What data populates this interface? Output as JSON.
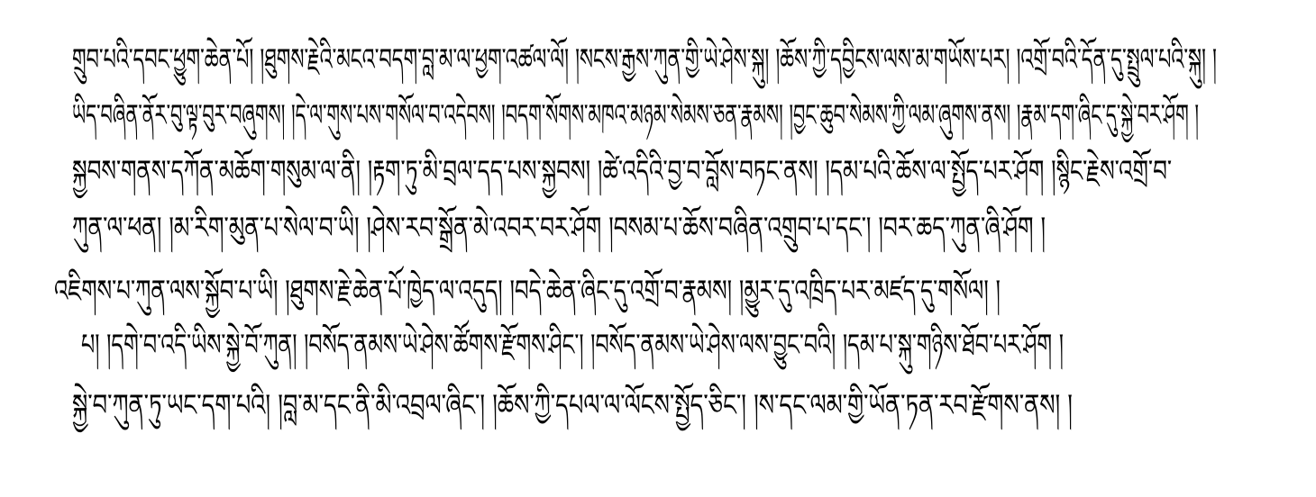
{
  "document": {
    "lines": [
      "གྲུབ་པའི་དབང་ཕྱུག་ཆེན་པོ། །ཐུགས་རྗེའི་མངའ་བདག་བླ་མ་ལ་ཕྱག་འཚལ་ལོ། །སངས་རྒྱས་ཀུན་གྱི་ཡེ་ཤེས་སྐུ། །ཆོས་ཀྱི་དབྱིངས་ལས་མ་གཡོས་པར། །འགྲོ་བའི་དོན་དུ་སྤྲུལ་པའི་སྐུ། །",
      "ཡིད་བཞིན་ནོར་བུ་ལྟ་བུར་བཞུགས། །དེ་ལ་གུས་པས་གསོལ་བ་འདེབས། །བདག་སོགས་མཁའ་མཉམ་སེམས་ཅན་རྣམས། །བྱང་ཆུབ་སེམས་ཀྱི་ལམ་ཞུགས་ནས། །རྣམ་དག་ཞིང་དུ་སྐྱེ་བར་ཤོག །",
      "སྐྱབས་གནས་དཀོན་མཆོག་གསུམ་ལ་ནི། །རྟག་ཏུ་མི་བྲལ་དད་པས་སྐྱབས། །ཚེ་འདིའི་བྱ་བ་བློས་བཏང་ནས། །དམ་པའི་ཆོས་ལ་སྤྱོད་པར་ཤོག །སྙིང་རྗེས་འགྲོ་བ་",
      "ཀུན་ལ་ཕན། །མ་རིག་མུན་པ་སེལ་བ་ཡི། །ཤེས་རབ་སྒྲོན་མེ་འབར་བར་ཤོག །བསམ་པ་ཆོས་བཞིན་འགྲུབ་པ་དང་། །བར་ཆད་ཀུན་ཞི་ཤོག །",
      "འཇིགས་པ་ཀུན་ལས་སྐྱོབ་པ་ཡི། །ཐུགས་རྗེ་ཆེན་པོ་ཁྱེད་ལ་འདུད། །བདེ་ཆེན་ཞིང་དུ་འགྲོ་བ་རྣམས། །མྱུར་དུ་འཁྲིད་པར་མཛད་དུ་གསོལ། །",
      "པ། །དགེ་བ་འདི་ཡིས་སྐྱེ་བོ་ཀུན། །བསོད་ནམས་ཡེ་ཤེས་ཚོགས་རྫོགས་ཤིང་། །བསོད་ནམས་ཡེ་ཤེས་ལས་བྱུང་བའི། །དམ་པ་སྐུ་གཉིས་ཐོབ་པར་ཤོག །",
      "སྐྱེ་བ་ཀུན་ཏུ་ཡང་དག་པའི། །བླ་མ་དང་ནི་མི་འབྲལ་ཞིང་། །ཆོས་ཀྱི་དཔལ་ལ་ལོངས་སྤྱོད་ཅིང་། །ས་དང་ལམ་གྱི་ཡོན་ཏན་རབ་རྫོགས་ནས། །"
    ]
  }
}
